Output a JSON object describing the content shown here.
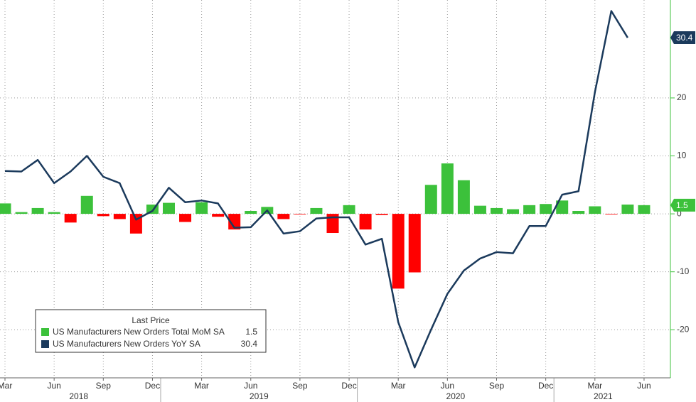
{
  "chart_data": {
    "type": "bar_line",
    "categories": [
      "Mar",
      null,
      null,
      "Jun",
      null,
      null,
      "Sep",
      null,
      null,
      "Dec",
      null,
      null,
      "Mar",
      null,
      null,
      "Jun",
      null,
      null,
      "Sep",
      null,
      null,
      "Dec",
      null,
      null,
      "Mar",
      null,
      null,
      "Jun",
      null,
      null,
      "Sep",
      null,
      null,
      "Dec",
      null,
      null,
      "Mar",
      null,
      null,
      "Jun"
    ],
    "years": [
      "2018",
      "2019",
      "2020",
      "2021"
    ],
    "legend_title": "Last Price",
    "series": [
      {
        "name": "US Manufacturers New Orders Total MoM SA",
        "type": "bar",
        "color": "#3cc13b",
        "negative_color": "#ff0000",
        "values": [
          1.8,
          0.3,
          1.0,
          0.3,
          -1.5,
          3.1,
          -0.4,
          -0.9,
          -3.4,
          1.6,
          1.9,
          -1.4,
          2.0,
          -0.5,
          -2.7,
          0.5,
          1.2,
          -0.9,
          -0.1,
          1.0,
          -3.3,
          1.5,
          -2.7,
          -0.2,
          -12.9,
          -10.1,
          5.0,
          8.7,
          5.8,
          1.4,
          1.0,
          0.8,
          1.5,
          1.7,
          2.3,
          0.5,
          1.3,
          -0.1,
          1.6,
          1.5
        ]
      },
      {
        "name": "US Manufacturers New Orders YoY SA",
        "type": "line",
        "color": "#1b3a5c",
        "values": [
          7.4,
          7.3,
          9.3,
          5.3,
          7.3,
          10.0,
          6.4,
          5.3,
          -1.0,
          0.5,
          4.5,
          2.0,
          2.3,
          1.8,
          -2.4,
          -2.3,
          0.6,
          -3.4,
          -3.0,
          -0.8,
          -0.6,
          -0.6,
          -5.3,
          -4.3,
          -18.7,
          -26.5,
          -20.0,
          -13.8,
          -9.8,
          -7.7,
          -6.6,
          -6.8,
          -2.1,
          -2.1,
          3.3,
          3.9,
          21.0,
          35.0,
          30.4,
          null
        ]
      }
    ],
    "ylim": [
      -28.3,
      36.9
    ],
    "yticks": [
      -20,
      -10,
      0,
      10,
      20
    ],
    "grid": true
  }
}
